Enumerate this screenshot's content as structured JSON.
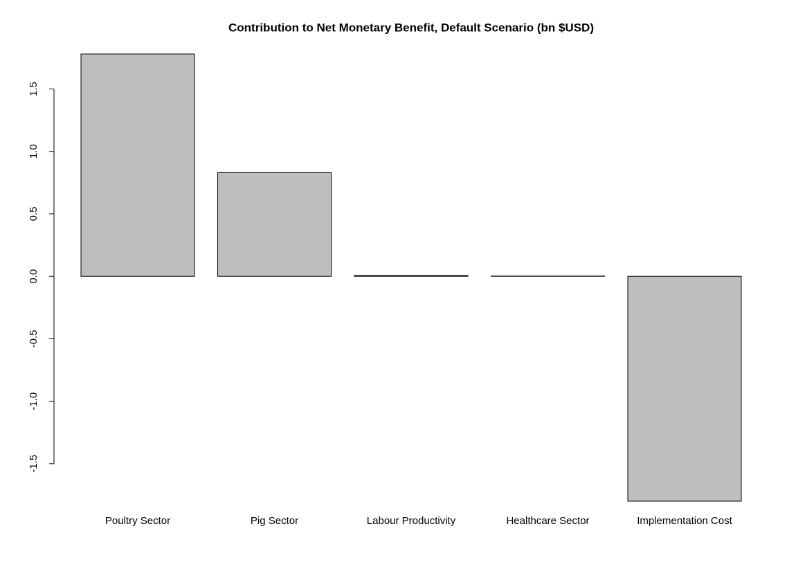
{
  "chart_data": {
    "type": "bar",
    "title": "Contribution to Net Monetary Benefit, Default Scenario (bn $USD)",
    "categories": [
      "Poultry Sector",
      "Pig Sector",
      "Labour Productivity",
      "Healthcare Sector",
      "Implementation Cost"
    ],
    "values": [
      1.78,
      0.83,
      0.008,
      0.002,
      -1.8
    ],
    "color": "#bebebe",
    "ylim": [
      -1.8,
      1.78
    ],
    "yticks": [
      {
        "value": -1.5,
        "label": "-1.5"
      },
      {
        "value": -1,
        "label": "-1.0"
      },
      -0.5,
      {
        "value": 0,
        "label": "0.0"
      },
      0.5,
      {
        "value": 1,
        "label": "1.0"
      },
      1.5
    ]
  }
}
